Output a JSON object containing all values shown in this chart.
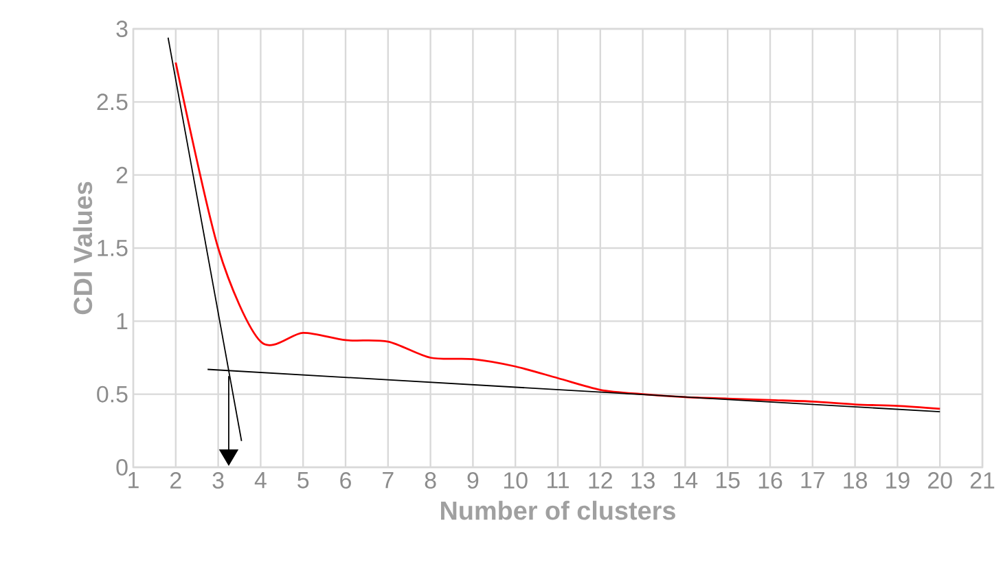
{
  "chart_data": {
    "type": "line",
    "xlabel": "Number of clusters",
    "ylabel": "CDI Values",
    "x": [
      2,
      3,
      4,
      5,
      6,
      7,
      8,
      9,
      10,
      11,
      12,
      13,
      14,
      15,
      16,
      17,
      18,
      19,
      20
    ],
    "series": [
      {
        "color": "#ff0000",
        "values": [
          2.77,
          1.5,
          0.86,
          0.92,
          0.87,
          0.86,
          0.75,
          0.74,
          0.69,
          0.61,
          0.53,
          0.5,
          0.48,
          0.47,
          0.46,
          0.45,
          0.43,
          0.42,
          0.4
        ]
      },
      {
        "type": "line",
        "color": "#000000",
        "x": [
          1.82,
          3.55
        ],
        "values": [
          2.94,
          0.18
        ]
      },
      {
        "type": "line",
        "color": "#000000",
        "x": [
          2.75,
          20
        ],
        "values": [
          0.67,
          0.38
        ]
      }
    ],
    "xlim": [
      1,
      21
    ],
    "ylim": [
      0,
      3
    ],
    "xticks": [
      1,
      2,
      3,
      4,
      5,
      6,
      7,
      8,
      9,
      10,
      11,
      12,
      13,
      14,
      15,
      16,
      17,
      18,
      19,
      20,
      21
    ],
    "yticks": [
      0,
      0.5,
      1,
      1.5,
      2,
      2.5,
      3
    ],
    "grid": true,
    "marker": "none",
    "line_style": "solid"
  }
}
